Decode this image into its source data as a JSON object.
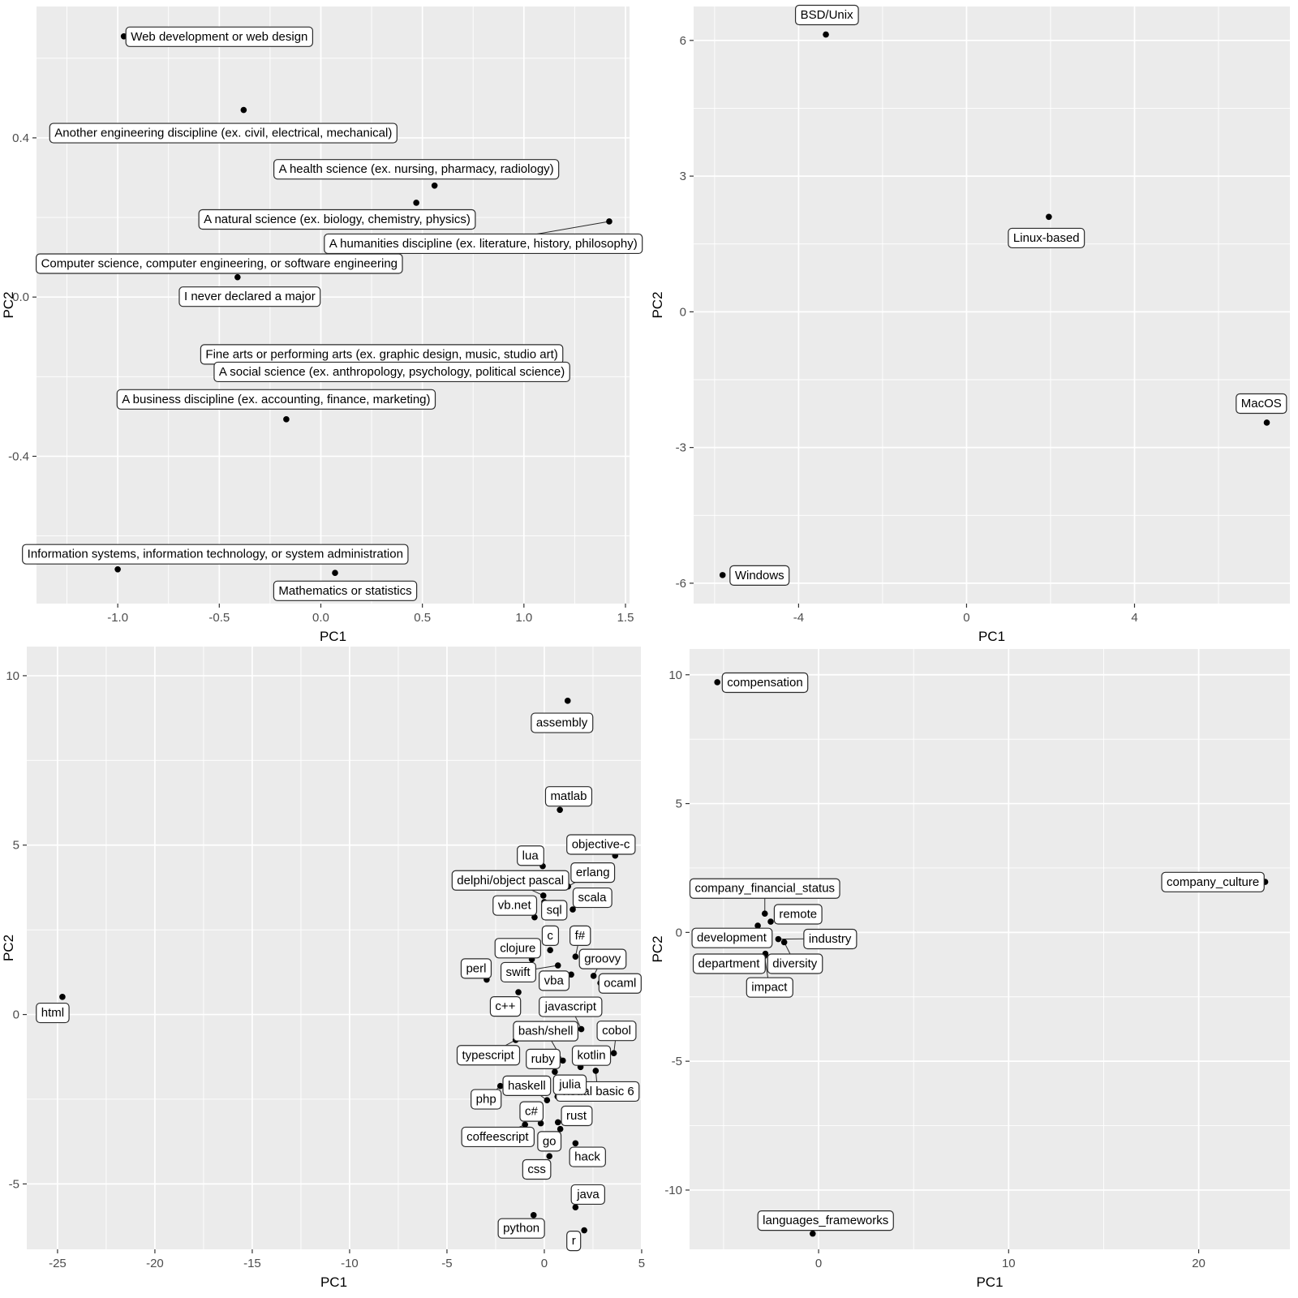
{
  "figure": {
    "description": "2x2 grid of PCA biplots (ggplot2 style)",
    "panel_bg": "#EBEBEB",
    "grid_color": "#FFFFFF",
    "point_color": "#000000",
    "label_box_fill": "#FFFFFF",
    "label_box_border": "#2b2b2b",
    "tick_label_color": "#4d4d4d",
    "axis_title_color": "#000000"
  },
  "chart_data": [
    {
      "id": "majors",
      "type": "scatter",
      "title": "",
      "xlabel": "PC1",
      "ylabel": "PC2",
      "xlim": [
        -1.4,
        1.52
      ],
      "ylim": [
        -0.77,
        0.73
      ],
      "xticks": [
        -1.0,
        -0.5,
        0.0,
        0.5,
        1.0,
        1.5
      ],
      "xtick_labels": [
        "-1.0",
        "-0.5",
        "0.0",
        "0.5",
        "1.0",
        "1.5"
      ],
      "yticks": [
        0.4,
        0.0,
        -0.4
      ],
      "ytick_labels": [
        "0.4",
        "0.0",
        "-0.4"
      ],
      "grid": true,
      "legend": "none",
      "points": [
        {
          "label": "Web development or web design",
          "x": -0.97,
          "y": 0.655,
          "lx": -0.5,
          "ly": 0.655,
          "seg": false
        },
        {
          "label": "Another engineering discipline (ex. civil, electrical, mechanical)",
          "x": -0.38,
          "y": 0.47,
          "lx": -0.48,
          "ly": 0.413,
          "seg": false
        },
        {
          "label": "A health science (ex. nursing, pharmacy, radiology)",
          "x": 0.56,
          "y": 0.28,
          "lx": 0.47,
          "ly": 0.322,
          "seg": false
        },
        {
          "label": "A natural science (ex. biology, chemistry, physics)",
          "x": 0.47,
          "y": 0.237,
          "lx": 0.08,
          "ly": 0.196,
          "seg": false
        },
        {
          "label": "A humanities discipline (ex. literature, history, philosophy)",
          "x": 1.42,
          "y": 0.19,
          "lx": 0.8,
          "ly": 0.135,
          "seg": true
        },
        {
          "label": "Computer science, computer engineering, or software engineering",
          "x": -0.5,
          "y": 0.085,
          "lx": -0.5,
          "ly": 0.085,
          "seg": false
        },
        {
          "label": "I never declared a major",
          "x": -0.41,
          "y": 0.05,
          "lx": -0.35,
          "ly": 0.002,
          "seg": false
        },
        {
          "label": "Fine arts or performing arts (ex. graphic design, music, studio art)",
          "x": 0.3,
          "y": -0.143,
          "lx": 0.3,
          "ly": -0.143,
          "seg": false
        },
        {
          "label": "A social science (ex. anthropology, psychology, political science)",
          "x": 0.35,
          "y": -0.187,
          "lx": 0.35,
          "ly": -0.187,
          "seg": false
        },
        {
          "label": "A business discipline (ex. accounting, finance, marketing)",
          "x": -0.17,
          "y": -0.307,
          "lx": -0.22,
          "ly": -0.256,
          "seg": false
        },
        {
          "label": "Information systems, information technology, or system administration",
          "x": -1.0,
          "y": -0.684,
          "lx": -0.52,
          "ly": -0.645,
          "seg": false
        },
        {
          "label": "Mathematics or statistics",
          "x": 0.07,
          "y": -0.693,
          "lx": 0.12,
          "ly": -0.737,
          "seg": false
        }
      ]
    },
    {
      "id": "os",
      "type": "scatter",
      "title": "",
      "xlabel": "PC1",
      "ylabel": "PC2",
      "xlim": [
        -6.5,
        7.7
      ],
      "ylim": [
        -6.45,
        6.75
      ],
      "xticks": [
        -4,
        0,
        4
      ],
      "xtick_labels": [
        "-4",
        "0",
        "4"
      ],
      "yticks": [
        6,
        3,
        0,
        -3,
        -6
      ],
      "ytick_labels": [
        "6",
        "3",
        "0",
        "-3",
        "-6"
      ],
      "grid": true,
      "legend": "none",
      "points": [
        {
          "label": "BSD/Unix",
          "x": -3.35,
          "y": 6.13,
          "lx": -3.33,
          "ly": 6.57,
          "seg": false
        },
        {
          "label": "Linux-based",
          "x": 1.96,
          "y": 2.1,
          "lx": 1.9,
          "ly": 1.64,
          "seg": false
        },
        {
          "label": "MacOS",
          "x": 7.15,
          "y": -2.45,
          "lx": 7.02,
          "ly": -2.02,
          "seg": false
        },
        {
          "label": "Windows",
          "x": -5.81,
          "y": -5.82,
          "lx": -4.93,
          "ly": -5.82,
          "seg": false
        }
      ]
    },
    {
      "id": "languages",
      "type": "scatter",
      "title": "",
      "xlabel": "PC1",
      "ylabel": "PC2",
      "xlim": [
        -26.58,
        4.96
      ],
      "ylim": [
        -6.93,
        10.86
      ],
      "xticks": [
        -25,
        -20,
        -15,
        -10,
        -5,
        0,
        5
      ],
      "xtick_labels": [
        "-25",
        "-20",
        "-15",
        "-10",
        "-5",
        "0",
        "5"
      ],
      "yticks": [
        10,
        5,
        0,
        -5
      ],
      "ytick_labels": [
        "10",
        "5",
        "0",
        "-5"
      ],
      "grid": true,
      "legend": "none",
      "points": [
        {
          "label": "assembly",
          "x": 1.2,
          "y": 9.26,
          "lx": 0.9,
          "ly": 8.62,
          "seg": false
        },
        {
          "label": "matlab",
          "x": 0.8,
          "y": 6.04,
          "lx": 1.25,
          "ly": 6.45,
          "seg": false
        },
        {
          "label": "objective-c",
          "x": 3.64,
          "y": 4.69,
          "lx": 2.9,
          "ly": 5.03,
          "seg": false
        },
        {
          "label": "lua",
          "x": -0.08,
          "y": 4.38,
          "lx": -0.72,
          "ly": 4.7,
          "seg": false
        },
        {
          "label": "erlang",
          "x": 1.22,
          "y": 3.78,
          "lx": 2.49,
          "ly": 4.2,
          "seg": true
        },
        {
          "label": "delphi/object pascal",
          "x": -0.05,
          "y": 3.51,
          "lx": -1.74,
          "ly": 3.97,
          "seg": true
        },
        {
          "label": "scala",
          "x": 1.46,
          "y": 3.1,
          "lx": 2.46,
          "ly": 3.46,
          "seg": true
        },
        {
          "label": "vb.net",
          "x": -0.5,
          "y": 2.87,
          "lx": -1.53,
          "ly": 3.23,
          "seg": false
        },
        {
          "label": "sql",
          "x": 0.0,
          "y": 3.32,
          "lx": 0.51,
          "ly": 3.09,
          "seg": false
        },
        {
          "label": "c",
          "x": 0.3,
          "y": 1.9,
          "lx": 0.3,
          "ly": 2.34,
          "seg": false
        },
        {
          "label": "f#",
          "x": 1.6,
          "y": 1.71,
          "lx": 1.83,
          "ly": 2.34,
          "seg": true
        },
        {
          "label": "clojure",
          "x": -0.64,
          "y": 1.63,
          "lx": -1.36,
          "ly": 1.97,
          "seg": false
        },
        {
          "label": "groovy",
          "x": 2.53,
          "y": 1.14,
          "lx": 2.99,
          "ly": 1.65,
          "seg": true
        },
        {
          "label": "perl",
          "x": -2.96,
          "y": 1.03,
          "lx": -3.5,
          "ly": 1.37,
          "seg": false
        },
        {
          "label": "swift",
          "x": 0.7,
          "y": 1.45,
          "lx": -1.35,
          "ly": 1.26,
          "seg": true
        },
        {
          "label": "vba",
          "x": 1.38,
          "y": 1.18,
          "lx": 0.49,
          "ly": 1.01,
          "seg": false
        },
        {
          "label": "ocaml",
          "x": 2.88,
          "y": 0.93,
          "lx": 3.89,
          "ly": 0.93,
          "seg": false
        },
        {
          "label": "c++",
          "x": -1.33,
          "y": 0.66,
          "lx": -2.0,
          "ly": 0.25,
          "seg": false
        },
        {
          "label": "html",
          "x": -24.75,
          "y": 0.52,
          "lx": -25.25,
          "ly": 0.06,
          "seg": false
        },
        {
          "label": "javascript",
          "x": 1.9,
          "y": -0.43,
          "lx": 1.35,
          "ly": 0.24,
          "seg": true
        },
        {
          "label": "bash/shell",
          "x": 0.95,
          "y": -1.36,
          "lx": 0.07,
          "ly": -0.48,
          "seg": true
        },
        {
          "label": "cobol",
          "x": 3.57,
          "y": -1.14,
          "lx": 3.71,
          "ly": -0.47,
          "seg": true
        },
        {
          "label": "typescript",
          "x": -1.47,
          "y": -0.75,
          "lx": -2.89,
          "ly": -1.19,
          "seg": true
        },
        {
          "label": "ruby",
          "x": 0.54,
          "y": -1.69,
          "lx": -0.07,
          "ly": -1.3,
          "seg": false
        },
        {
          "label": "kotlin",
          "x": 1.86,
          "y": -1.55,
          "lx": 2.42,
          "ly": -1.2,
          "seg": false
        },
        {
          "label": "visual basic 6",
          "x": 2.64,
          "y": -1.66,
          "lx": 2.74,
          "ly": -2.26,
          "seg": true
        },
        {
          "label": "julia",
          "x": 0.68,
          "y": -2.42,
          "lx": 1.32,
          "ly": -2.06,
          "seg": false
        },
        {
          "label": "haskell",
          "x": 0.14,
          "y": -2.53,
          "lx": -0.9,
          "ly": -2.09,
          "seg": true
        },
        {
          "label": "php",
          "x": -2.26,
          "y": -2.11,
          "lx": -2.99,
          "ly": -2.49,
          "seg": true
        },
        {
          "label": "c#",
          "x": -0.18,
          "y": -3.21,
          "lx": -0.67,
          "ly": -2.85,
          "seg": true
        },
        {
          "label": "coffeescript",
          "x": -0.99,
          "y": -3.25,
          "lx": -2.4,
          "ly": -3.6,
          "seg": true
        },
        {
          "label": "rust",
          "x": 0.7,
          "y": -3.18,
          "lx": 1.65,
          "ly": -2.98,
          "seg": true
        },
        {
          "label": "go",
          "x": 0.82,
          "y": -3.38,
          "lx": 0.26,
          "ly": -3.73,
          "seg": true
        },
        {
          "label": "css",
          "x": 0.26,
          "y": -4.18,
          "lx": -0.39,
          "ly": -4.56,
          "seg": false
        },
        {
          "label": "hack",
          "x": 1.6,
          "y": -3.8,
          "lx": 2.21,
          "ly": -4.19,
          "seg": false
        },
        {
          "label": "java",
          "x": 1.6,
          "y": -5.69,
          "lx": 2.25,
          "ly": -5.3,
          "seg": false
        },
        {
          "label": "python",
          "x": -0.55,
          "y": -5.92,
          "lx": -1.18,
          "ly": -6.3,
          "seg": false
        },
        {
          "label": "r",
          "x": 2.05,
          "y": -6.37,
          "lx": 1.51,
          "ly": -6.67,
          "seg": false
        }
      ]
    },
    {
      "id": "factors",
      "type": "scatter",
      "title": "",
      "xlabel": "PC1",
      "ylabel": "PC2",
      "xlim": [
        -6.79,
        24.8
      ],
      "ylim": [
        -12.3,
        11.0
      ],
      "xticks": [
        0,
        10,
        20
      ],
      "xtick_labels": [
        "0",
        "10",
        "20"
      ],
      "yticks": [
        10,
        5,
        0,
        -5,
        -10
      ],
      "ytick_labels": [
        "10",
        "5",
        "0",
        "-5",
        "-10"
      ],
      "grid": true,
      "legend": "none",
      "points": [
        {
          "label": "compensation",
          "x": -5.33,
          "y": 9.71,
          "lx": -2.82,
          "ly": 9.71,
          "seg": false
        },
        {
          "label": "company_culture",
          "x": 23.5,
          "y": 1.96,
          "lx": 20.75,
          "ly": 1.97,
          "seg": false
        },
        {
          "label": "company_financial_status",
          "x": -2.83,
          "y": 0.73,
          "lx": -2.83,
          "ly": 1.72,
          "seg": true
        },
        {
          "label": "remote",
          "x": -2.52,
          "y": 0.42,
          "lx": -1.08,
          "ly": 0.72,
          "seg": false
        },
        {
          "label": "development",
          "x": -3.2,
          "y": 0.26,
          "lx": -4.57,
          "ly": -0.2,
          "seg": false
        },
        {
          "label": "industry",
          "x": -2.12,
          "y": -0.26,
          "lx": 0.6,
          "ly": -0.24,
          "seg": true
        },
        {
          "label": "department",
          "x": -2.8,
          "y": -0.83,
          "lx": -4.72,
          "ly": -1.2,
          "seg": true
        },
        {
          "label": "diversity",
          "x": -1.81,
          "y": -0.38,
          "lx": -1.25,
          "ly": -1.2,
          "seg": true
        },
        {
          "label": "impact",
          "x": -2.85,
          "y": -0.91,
          "lx": -2.59,
          "ly": -2.12,
          "seg": true
        },
        {
          "label": "languages_frameworks",
          "x": -0.31,
          "y": -11.69,
          "lx": 0.37,
          "ly": -11.17,
          "seg": false
        }
      ]
    }
  ]
}
